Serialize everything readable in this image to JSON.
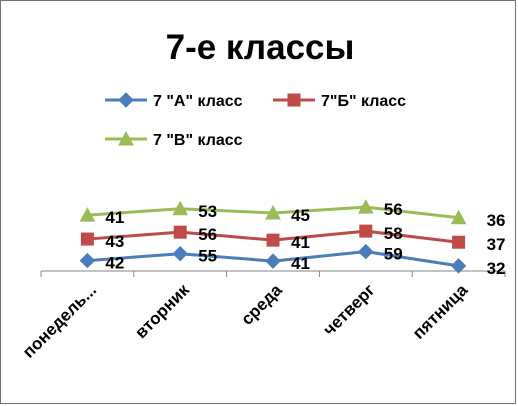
{
  "chart_data": {
    "type": "line",
    "title": "7-е классы",
    "categories": [
      "понедель...",
      "вторник",
      "среда",
      "четверг",
      "пятница"
    ],
    "series": [
      {
        "name": "7 \"А\" класс",
        "values": [
          42,
          55,
          41,
          59,
          32
        ],
        "color": "#4a7ebb",
        "marker": "diamond"
      },
      {
        "name": "7\"Б\" класс",
        "values": [
          43,
          56,
          41,
          58,
          37
        ],
        "color": "#be4b48",
        "marker": "square"
      },
      {
        "name": "7 \"В\" класс",
        "values": [
          41,
          53,
          45,
          56,
          36
        ],
        "color": "#9bbb59",
        "marker": "triangle"
      }
    ],
    "data_labels": true,
    "legend": "top",
    "grid": false
  }
}
